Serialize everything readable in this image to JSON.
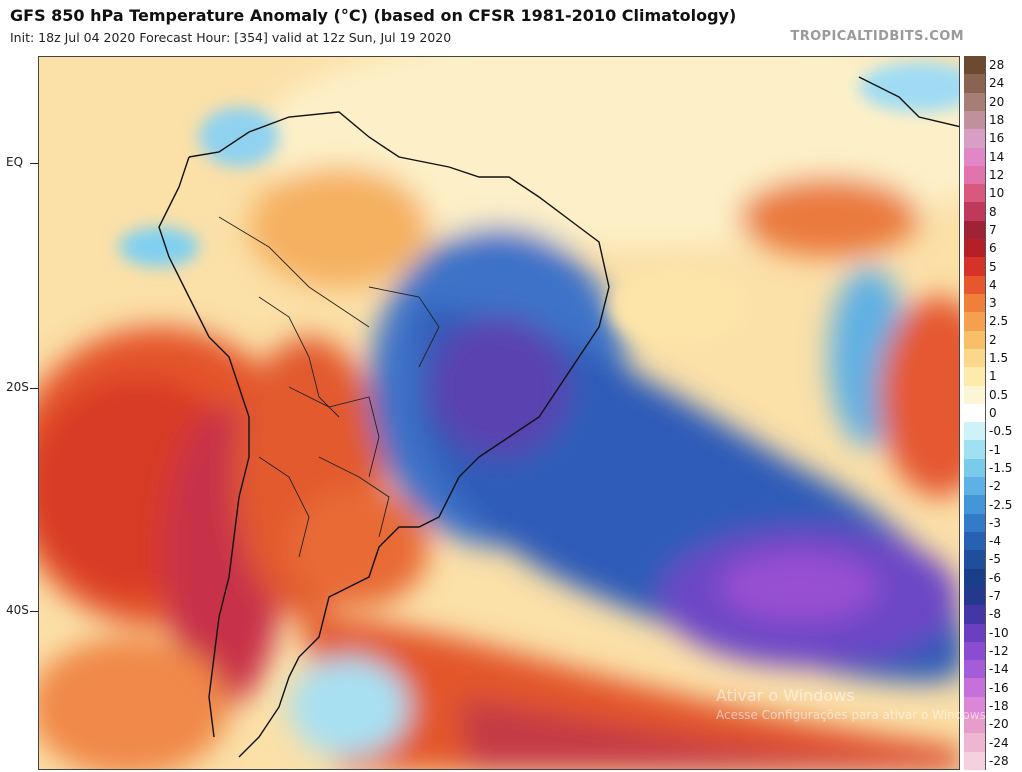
{
  "header": {
    "title": "GFS 850 hPa Temperature Anomaly (°C) (based on CFSR 1981-2010 Climatology)",
    "subtitle": "Init: 18z Jul 04 2020    Forecast Hour: [354]   valid at 12z Sun, Jul 19 2020",
    "brand": "TROPICALTIDBITS.COM"
  },
  "map": {
    "latitude_labels": [
      "EQ",
      "20S",
      "40S"
    ]
  },
  "colorbar": {
    "labels": [
      "28",
      "24",
      "20",
      "18",
      "16",
      "14",
      "12",
      "10",
      "8",
      "7",
      "6",
      "5",
      "4",
      "3",
      "2.5",
      "2",
      "1.5",
      "1",
      "0.5",
      "0",
      "-0.5",
      "-1",
      "-1.5",
      "-2",
      "-2.5",
      "-3",
      "-4",
      "-5",
      "-6",
      "-7",
      "-8",
      "-10",
      "-12",
      "-14",
      "-16",
      "-18",
      "-20",
      "-24",
      "-28"
    ],
    "colors": [
      "#6b4a30",
      "#8a6450",
      "#a77e75",
      "#c0909c",
      "#d79fc4",
      "#e287c6",
      "#e175ab",
      "#d8587e",
      "#c0395a",
      "#9e2336",
      "#b51f28",
      "#d63228",
      "#e8562d",
      "#f07f3c",
      "#f5a04f",
      "#f8bf68",
      "#fbd889",
      "#fcebab",
      "#fdf6d5",
      "#ffffff",
      "#cff2f8",
      "#9fe1f3",
      "#79cbec",
      "#5db1e4",
      "#4596d9",
      "#337bc8",
      "#2661b3",
      "#1e4e9c",
      "#183f88",
      "#24388e",
      "#4536a6",
      "#6a3fc0",
      "#8a4dd2",
      "#a45cd8",
      "#c670dc",
      "#dd85d6",
      "#e89ccc",
      "#efb6d2",
      "#f5d1e0"
    ]
  },
  "overlay": {
    "activation_title": "Ativar o Windows",
    "activation_sub": "Acesse Configurações para ativar o Windows."
  }
}
